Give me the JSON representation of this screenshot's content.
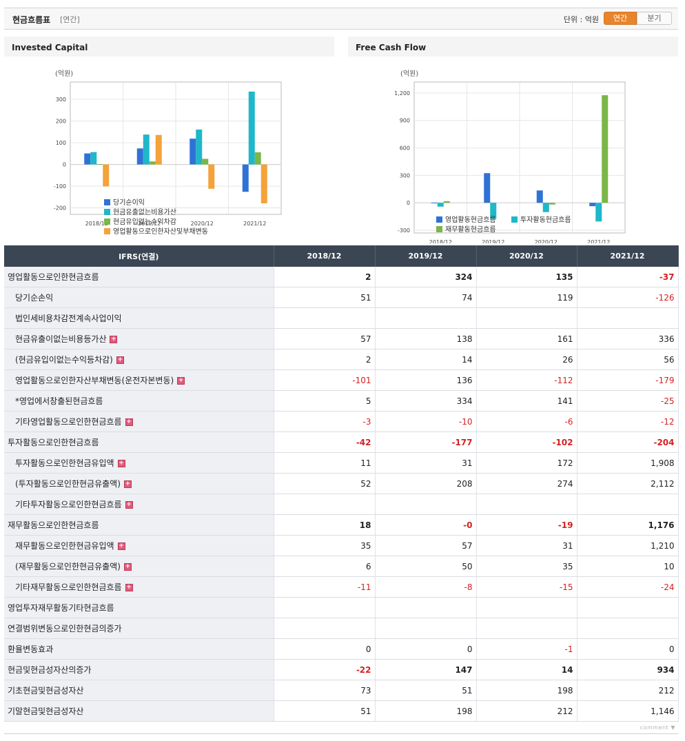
{
  "header": {
    "title": "현금흐름표",
    "subtitle": "[연간]",
    "unit_label": "단위 : 억원",
    "toggle_annual": "연간",
    "toggle_quarter": "분기"
  },
  "chart_data": [
    {
      "type": "bar",
      "title": "Invested Capital",
      "unit": "(억원)",
      "categories": [
        "2018/12",
        "2019/12",
        "2020/12",
        "2021/12"
      ],
      "ylim": [
        -230,
        380
      ],
      "yticks": [
        -200,
        -100,
        0,
        100,
        200,
        300
      ],
      "ytick_labels": [
        "-200",
        "-100",
        "0",
        "100",
        "200",
        "300"
      ],
      "series": [
        {
          "name": "당기순이익",
          "color": "#2f72d6",
          "values": [
            51,
            74,
            119,
            -126
          ]
        },
        {
          "name": "현금유출없는비용가산",
          "color": "#1fb7c9",
          "values": [
            57,
            138,
            161,
            336
          ]
        },
        {
          "name": "현금유입없는수익차감",
          "color": "#7ab648",
          "values": [
            2,
            14,
            26,
            56
          ]
        },
        {
          "name": "영업활동으로인한자산및부채변동",
          "color": "#f4a23a",
          "values": [
            -101,
            136,
            -112,
            -179
          ]
        }
      ],
      "legend_position": "bottom"
    },
    {
      "type": "bar",
      "title": "Free Cash Flow",
      "unit": "(억원)",
      "categories": [
        "2018/12",
        "2019/12",
        "2020/12",
        "2021/12"
      ],
      "ylim": [
        -330,
        1320
      ],
      "yticks": [
        -300,
        0,
        300,
        600,
        900,
        1200
      ],
      "ytick_labels": [
        "-300",
        "0",
        "300",
        "600",
        "900",
        "1,200"
      ],
      "series": [
        {
          "name": "영업활동현금흐름",
          "color": "#2f72d6",
          "values": [
            2,
            324,
            135,
            -37
          ]
        },
        {
          "name": "투자활동현금흐름",
          "color": "#1fb7c9",
          "values": [
            -42,
            -177,
            -102,
            -204
          ]
        },
        {
          "name": "재무활동현금흐름",
          "color": "#7ab648",
          "values": [
            18,
            0,
            -19,
            1176
          ]
        }
      ],
      "legend_position": "bottom"
    }
  ],
  "table": {
    "head": [
      "IFRS(연결)",
      "2018/12",
      "2019/12",
      "2020/12",
      "2021/12"
    ],
    "rows": [
      {
        "label": "영업활동으로인한현금흐름",
        "indent": false,
        "bold": true,
        "plus": false,
        "values": [
          "2",
          "324",
          "135",
          "-37"
        ]
      },
      {
        "label": "당기순손익",
        "indent": true,
        "bold": false,
        "plus": false,
        "values": [
          "51",
          "74",
          "119",
          "-126"
        ]
      },
      {
        "label": "법인세비용차감전계속사업이익",
        "indent": true,
        "bold": false,
        "plus": false,
        "values": [
          "",
          "",
          "",
          ""
        ]
      },
      {
        "label": "현금유출이없는비용등가산",
        "indent": true,
        "bold": false,
        "plus": true,
        "values": [
          "57",
          "138",
          "161",
          "336"
        ]
      },
      {
        "label": "(현금유입이없는수익등차감)",
        "indent": true,
        "bold": false,
        "plus": true,
        "values": [
          "2",
          "14",
          "26",
          "56"
        ]
      },
      {
        "label": "영업활동으로인한자산부채변동(운전자본변동)",
        "indent": true,
        "bold": false,
        "plus": true,
        "values": [
          "-101",
          "136",
          "-112",
          "-179"
        ]
      },
      {
        "label": "*영업에서창출된현금흐름",
        "indent": true,
        "bold": false,
        "plus": false,
        "values": [
          "5",
          "334",
          "141",
          "-25"
        ]
      },
      {
        "label": "기타영업활동으로인한현금흐름",
        "indent": true,
        "bold": false,
        "plus": true,
        "values": [
          "-3",
          "-10",
          "-6",
          "-12"
        ]
      },
      {
        "label": "투자활동으로인한현금흐름",
        "indent": false,
        "bold": true,
        "plus": false,
        "values": [
          "-42",
          "-177",
          "-102",
          "-204"
        ]
      },
      {
        "label": "투자활동으로인한현금유입액",
        "indent": true,
        "bold": false,
        "plus": true,
        "values": [
          "11",
          "31",
          "172",
          "1,908"
        ]
      },
      {
        "label": "(투자활동으로인한현금유출액)",
        "indent": true,
        "bold": false,
        "plus": true,
        "values": [
          "52",
          "208",
          "274",
          "2,112"
        ]
      },
      {
        "label": "기타투자활동으로인한현금흐름",
        "indent": true,
        "bold": false,
        "plus": true,
        "values": [
          "",
          "",
          "",
          ""
        ]
      },
      {
        "label": "재무활동으로인한현금흐름",
        "indent": false,
        "bold": true,
        "plus": false,
        "values": [
          "18",
          "-0",
          "-19",
          "1,176"
        ]
      },
      {
        "label": "재무활동으로인한현금유입액",
        "indent": true,
        "bold": false,
        "plus": true,
        "values": [
          "35",
          "57",
          "31",
          "1,210"
        ]
      },
      {
        "label": "(재무활동으로인한현금유출액)",
        "indent": true,
        "bold": false,
        "plus": true,
        "values": [
          "6",
          "50",
          "35",
          "10"
        ]
      },
      {
        "label": "기타재무활동으로인한현금흐름",
        "indent": true,
        "bold": false,
        "plus": true,
        "values": [
          "-11",
          "-8",
          "-15",
          "-24"
        ]
      },
      {
        "label": "영업투자재무활동기타현금흐름",
        "indent": false,
        "bold": false,
        "plus": false,
        "values": [
          "",
          "",
          "",
          ""
        ]
      },
      {
        "label": "연결범위변동으로인한현금의증가",
        "indent": false,
        "bold": false,
        "plus": false,
        "values": [
          "",
          "",
          "",
          ""
        ]
      },
      {
        "label": "환율변동효과",
        "indent": false,
        "bold": false,
        "plus": false,
        "values": [
          "0",
          "0",
          "-1",
          "0"
        ]
      },
      {
        "label": "현금및현금성자산의증가",
        "indent": false,
        "bold": true,
        "plus": false,
        "values": [
          "-22",
          "147",
          "14",
          "934"
        ]
      },
      {
        "label": "기초현금및현금성자산",
        "indent": false,
        "bold": false,
        "plus": false,
        "values": [
          "73",
          "51",
          "198",
          "212"
        ]
      },
      {
        "label": "기말현금및현금성자산",
        "indent": false,
        "bold": false,
        "plus": false,
        "values": [
          "51",
          "198",
          "212",
          "1,146"
        ]
      }
    ]
  },
  "footer": {
    "comment_label": "comment"
  }
}
